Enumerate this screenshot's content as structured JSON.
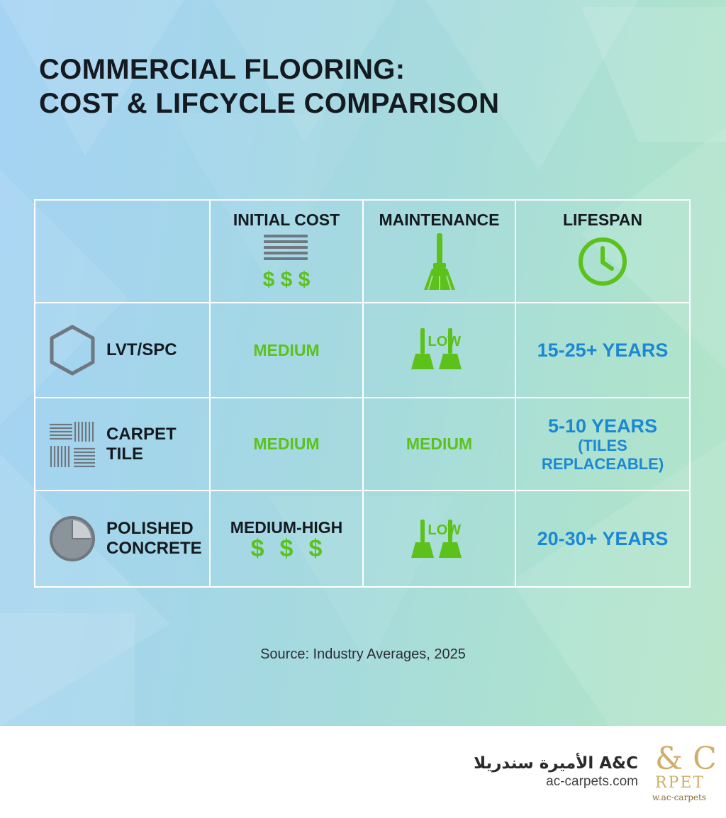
{
  "title": {
    "line1": "COMMERCIAL FLOORING:",
    "line2": "COST & LIFCYCLE COMPARISON"
  },
  "table": {
    "columns": [
      {
        "label": "INITIAL COST",
        "icon": "dollar-stack-icon"
      },
      {
        "label": "MAINTENANCE",
        "icon": "broom-icon"
      },
      {
        "label": "LIFESPAN",
        "icon": "clock-icon"
      }
    ],
    "header_cost_dollars": "$ $ $",
    "rows": [
      {
        "label_lines": [
          "LVT/SPC"
        ],
        "icon": "hexagon-icon",
        "initial_cost": "MEDIUM",
        "maintenance": "LOW",
        "lifespan": "15-25+ YEARS",
        "lifespan_note": ""
      },
      {
        "label_lines": [
          "CARPET",
          "TILE"
        ],
        "icon": "carpet-tile-icon",
        "initial_cost": "MEDIUM",
        "maintenance": "MEDIUM",
        "lifespan": "5-10 YEARS",
        "lifespan_note": "(TILES REPLACEABLE)"
      },
      {
        "label_lines": [
          "POLISHED",
          "CONCRETE"
        ],
        "icon": "polished-disc-icon",
        "initial_cost": "MEDIUM-HIGH",
        "initial_cost_dollars": [
          "$",
          "$",
          "$"
        ],
        "maintenance": "LOW",
        "lifespan": "20-30+ YEARS",
        "lifespan_note": ""
      }
    ]
  },
  "source": "Source: Industry Averages, 2025",
  "footer": {
    "brand_name": "A&C الأميرة سندريلا",
    "url": "ac-carpets.com",
    "logo_main": "& C",
    "logo_sub": "RPET",
    "logo_url": "w.ac-carpets"
  },
  "colors": {
    "green": "#5cc21b",
    "blue": "#1b88d4",
    "dark": "#141a20",
    "gold": "#cfae6a"
  }
}
